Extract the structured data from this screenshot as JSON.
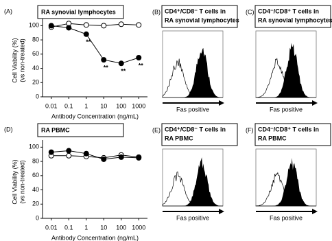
{
  "chart_data": [
    {
      "type": "line",
      "panel": "(A)",
      "title": "RA synovial lymphocytes",
      "ylabel": [
        "Cell Viability (%)",
        "(vs non-treated)"
      ],
      "xlabel": "Antibody Concentration (ng/mL)",
      "categories": [
        "0.01",
        "0.1",
        "1",
        "10",
        "100",
        "1000"
      ],
      "series": [
        {
          "color": "#000000",
          "fill": "#ffffff",
          "values": [
            98,
            103,
            101,
            100,
            102,
            101
          ]
        },
        {
          "color": "#000000",
          "fill": "#000000",
          "values": [
            100,
            97,
            88,
            52,
            47,
            55
          ],
          "significance": [
            null,
            null,
            "**",
            "**",
            "**",
            "**"
          ]
        }
      ],
      "ylim": [
        0,
        110
      ],
      "yticks": [
        0,
        20,
        40,
        60,
        80,
        100
      ]
    },
    {
      "type": "line",
      "panel": "(D)",
      "title": "RA PBMC",
      "ylabel": [
        "Cell Viability (%)",
        "(vs non-treated)"
      ],
      "xlabel": "Antibody Concentration (ng/mL)",
      "categories": [
        "0.01",
        "0.1",
        "1",
        "10",
        "100",
        "1000"
      ],
      "series": [
        {
          "color": "#000000",
          "fill": "#ffffff",
          "values": [
            88,
            88,
            87,
            85,
            89,
            86
          ]
        },
        {
          "color": "#000000",
          "fill": "#000000",
          "values": [
            93,
            95,
            91,
            83,
            86,
            85
          ]
        }
      ],
      "ylim": [
        0,
        110
      ],
      "yticks": [
        0,
        20,
        40,
        60,
        80,
        100
      ]
    }
  ],
  "histogram_panels": [
    {
      "panel": "(B)",
      "title": [
        "CD4⁺/CD8⁻ T cells in",
        "RA synovial lymphocytes"
      ],
      "xlabel": "Fas positive"
    },
    {
      "panel": "(C)",
      "title": [
        "CD4⁻/CD8⁺ T cells in",
        "RA synovial lymphocytes"
      ],
      "xlabel": "Fas positive"
    },
    {
      "panel": "(E)",
      "title": [
        "CD4⁺/CD8⁻ T cells in",
        "RA PBMC"
      ],
      "xlabel": "Fas positive"
    },
    {
      "panel": "(F)",
      "title": [
        "CD4⁻/CD8⁺ T cells in",
        "RA PBMC"
      ],
      "xlabel": "Fas positive"
    }
  ]
}
